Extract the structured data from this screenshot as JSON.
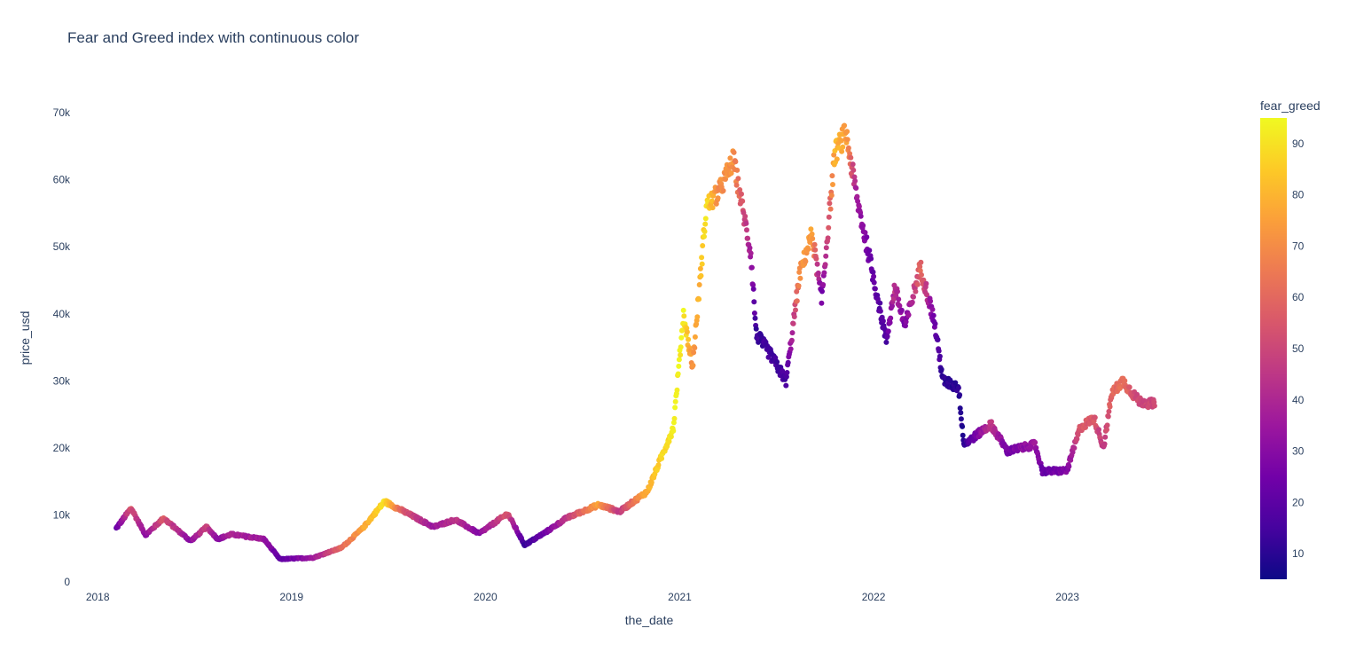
{
  "chart_data": {
    "type": "scatter",
    "title": "Fear and Greed index with continuous color",
    "xlabel": "the_date",
    "ylabel": "price_usd",
    "x_tick_labels": [
      "2018",
      "2019",
      "2020",
      "2021",
      "2022",
      "2023"
    ],
    "y_tick_labels": [
      "0",
      "10k",
      "20k",
      "30k",
      "40k",
      "50k",
      "60k",
      "70k"
    ],
    "y_ticks": [
      0,
      10000,
      20000,
      30000,
      40000,
      50000,
      60000,
      70000
    ],
    "ylim": [
      0,
      72000
    ],
    "xlim": [
      "2017-12-15",
      "2023-07-31"
    ],
    "grid": false,
    "colorbar": {
      "title": "fear_greed",
      "range": [
        5,
        95
      ],
      "tick_labels": [
        "10",
        "20",
        "30",
        "40",
        "50",
        "60",
        "70",
        "80",
        "90"
      ],
      "colorscale": [
        "#0d0887",
        "#46039f",
        "#7201a8",
        "#9c179e",
        "#bd3786",
        "#d8576b",
        "#ed7953",
        "#fb9f3a",
        "#fdca26",
        "#f0f921"
      ]
    },
    "anchors": [
      {
        "date": "2018-02-05",
        "price": 8000,
        "fg": 20
      },
      {
        "date": "2018-03-05",
        "price": 11000,
        "fg": 55
      },
      {
        "date": "2018-04-01",
        "price": 7000,
        "fg": 30
      },
      {
        "date": "2018-05-05",
        "price": 9500,
        "fg": 55
      },
      {
        "date": "2018-06-25",
        "price": 6100,
        "fg": 30
      },
      {
        "date": "2018-07-25",
        "price": 8200,
        "fg": 50
      },
      {
        "date": "2018-08-15",
        "price": 6400,
        "fg": 30
      },
      {
        "date": "2018-09-10",
        "price": 7100,
        "fg": 40
      },
      {
        "date": "2018-11-10",
        "price": 6400,
        "fg": 35
      },
      {
        "date": "2018-12-10",
        "price": 3400,
        "fg": 20
      },
      {
        "date": "2019-02-10",
        "price": 3600,
        "fg": 35
      },
      {
        "date": "2019-04-05",
        "price": 5100,
        "fg": 60
      },
      {
        "date": "2019-05-15",
        "price": 8000,
        "fg": 75
      },
      {
        "date": "2019-06-25",
        "price": 12000,
        "fg": 90
      },
      {
        "date": "2019-08-01",
        "price": 10500,
        "fg": 55
      },
      {
        "date": "2019-09-25",
        "price": 8200,
        "fg": 35
      },
      {
        "date": "2019-11-05",
        "price": 9300,
        "fg": 45
      },
      {
        "date": "2019-12-20",
        "price": 7200,
        "fg": 30
      },
      {
        "date": "2020-02-12",
        "price": 10200,
        "fg": 55
      },
      {
        "date": "2020-03-15",
        "price": 5500,
        "fg": 12
      },
      {
        "date": "2020-04-25",
        "price": 7500,
        "fg": 25
      },
      {
        "date": "2020-06-01",
        "price": 9500,
        "fg": 45
      },
      {
        "date": "2020-08-01",
        "price": 11500,
        "fg": 75
      },
      {
        "date": "2020-09-10",
        "price": 10500,
        "fg": 45
      },
      {
        "date": "2020-11-01",
        "price": 13500,
        "fg": 80
      },
      {
        "date": "2020-12-20",
        "price": 23000,
        "fg": 92
      },
      {
        "date": "2021-01-08",
        "price": 40000,
        "fg": 93
      },
      {
        "date": "2021-01-25",
        "price": 32000,
        "fg": 70
      },
      {
        "date": "2021-02-20",
        "price": 56000,
        "fg": 90
      },
      {
        "date": "2021-03-15",
        "price": 58000,
        "fg": 70
      },
      {
        "date": "2021-04-12",
        "price": 63000,
        "fg": 72
      },
      {
        "date": "2021-05-15",
        "price": 49000,
        "fg": 35
      },
      {
        "date": "2021-05-25",
        "price": 37000,
        "fg": 12
      },
      {
        "date": "2021-06-20",
        "price": 34000,
        "fg": 15
      },
      {
        "date": "2021-07-20",
        "price": 30000,
        "fg": 15
      },
      {
        "date": "2021-08-15",
        "price": 46000,
        "fg": 70
      },
      {
        "date": "2021-09-07",
        "price": 52000,
        "fg": 75
      },
      {
        "date": "2021-09-25",
        "price": 42000,
        "fg": 25
      },
      {
        "date": "2021-10-20",
        "price": 64000,
        "fg": 80
      },
      {
        "date": "2021-11-10",
        "price": 67000,
        "fg": 75
      },
      {
        "date": "2021-12-01",
        "price": 57000,
        "fg": 35
      },
      {
        "date": "2021-12-25",
        "price": 48000,
        "fg": 25
      },
      {
        "date": "2022-01-25",
        "price": 36000,
        "fg": 15
      },
      {
        "date": "2022-02-10",
        "price": 44000,
        "fg": 45
      },
      {
        "date": "2022-03-01",
        "price": 38000,
        "fg": 25
      },
      {
        "date": "2022-03-30",
        "price": 47000,
        "fg": 60
      },
      {
        "date": "2022-04-25",
        "price": 39000,
        "fg": 25
      },
      {
        "date": "2022-05-12",
        "price": 30000,
        "fg": 10
      },
      {
        "date": "2022-06-10",
        "price": 29000,
        "fg": 10
      },
      {
        "date": "2022-06-20",
        "price": 20500,
        "fg": 10
      },
      {
        "date": "2022-08-10",
        "price": 23500,
        "fg": 45
      },
      {
        "date": "2022-09-10",
        "price": 19500,
        "fg": 25
      },
      {
        "date": "2022-11-01",
        "price": 20500,
        "fg": 35
      },
      {
        "date": "2022-11-15",
        "price": 16500,
        "fg": 22
      },
      {
        "date": "2022-12-31",
        "price": 16600,
        "fg": 28
      },
      {
        "date": "2023-01-25",
        "price": 23000,
        "fg": 55
      },
      {
        "date": "2023-02-20",
        "price": 24500,
        "fg": 55
      },
      {
        "date": "2023-03-10",
        "price": 20000,
        "fg": 45
      },
      {
        "date": "2023-03-25",
        "price": 28000,
        "fg": 60
      },
      {
        "date": "2023-04-15",
        "price": 30000,
        "fg": 62
      },
      {
        "date": "2023-05-15",
        "price": 27000,
        "fg": 50
      },
      {
        "date": "2023-06-15",
        "price": 26500,
        "fg": 50
      }
    ]
  }
}
